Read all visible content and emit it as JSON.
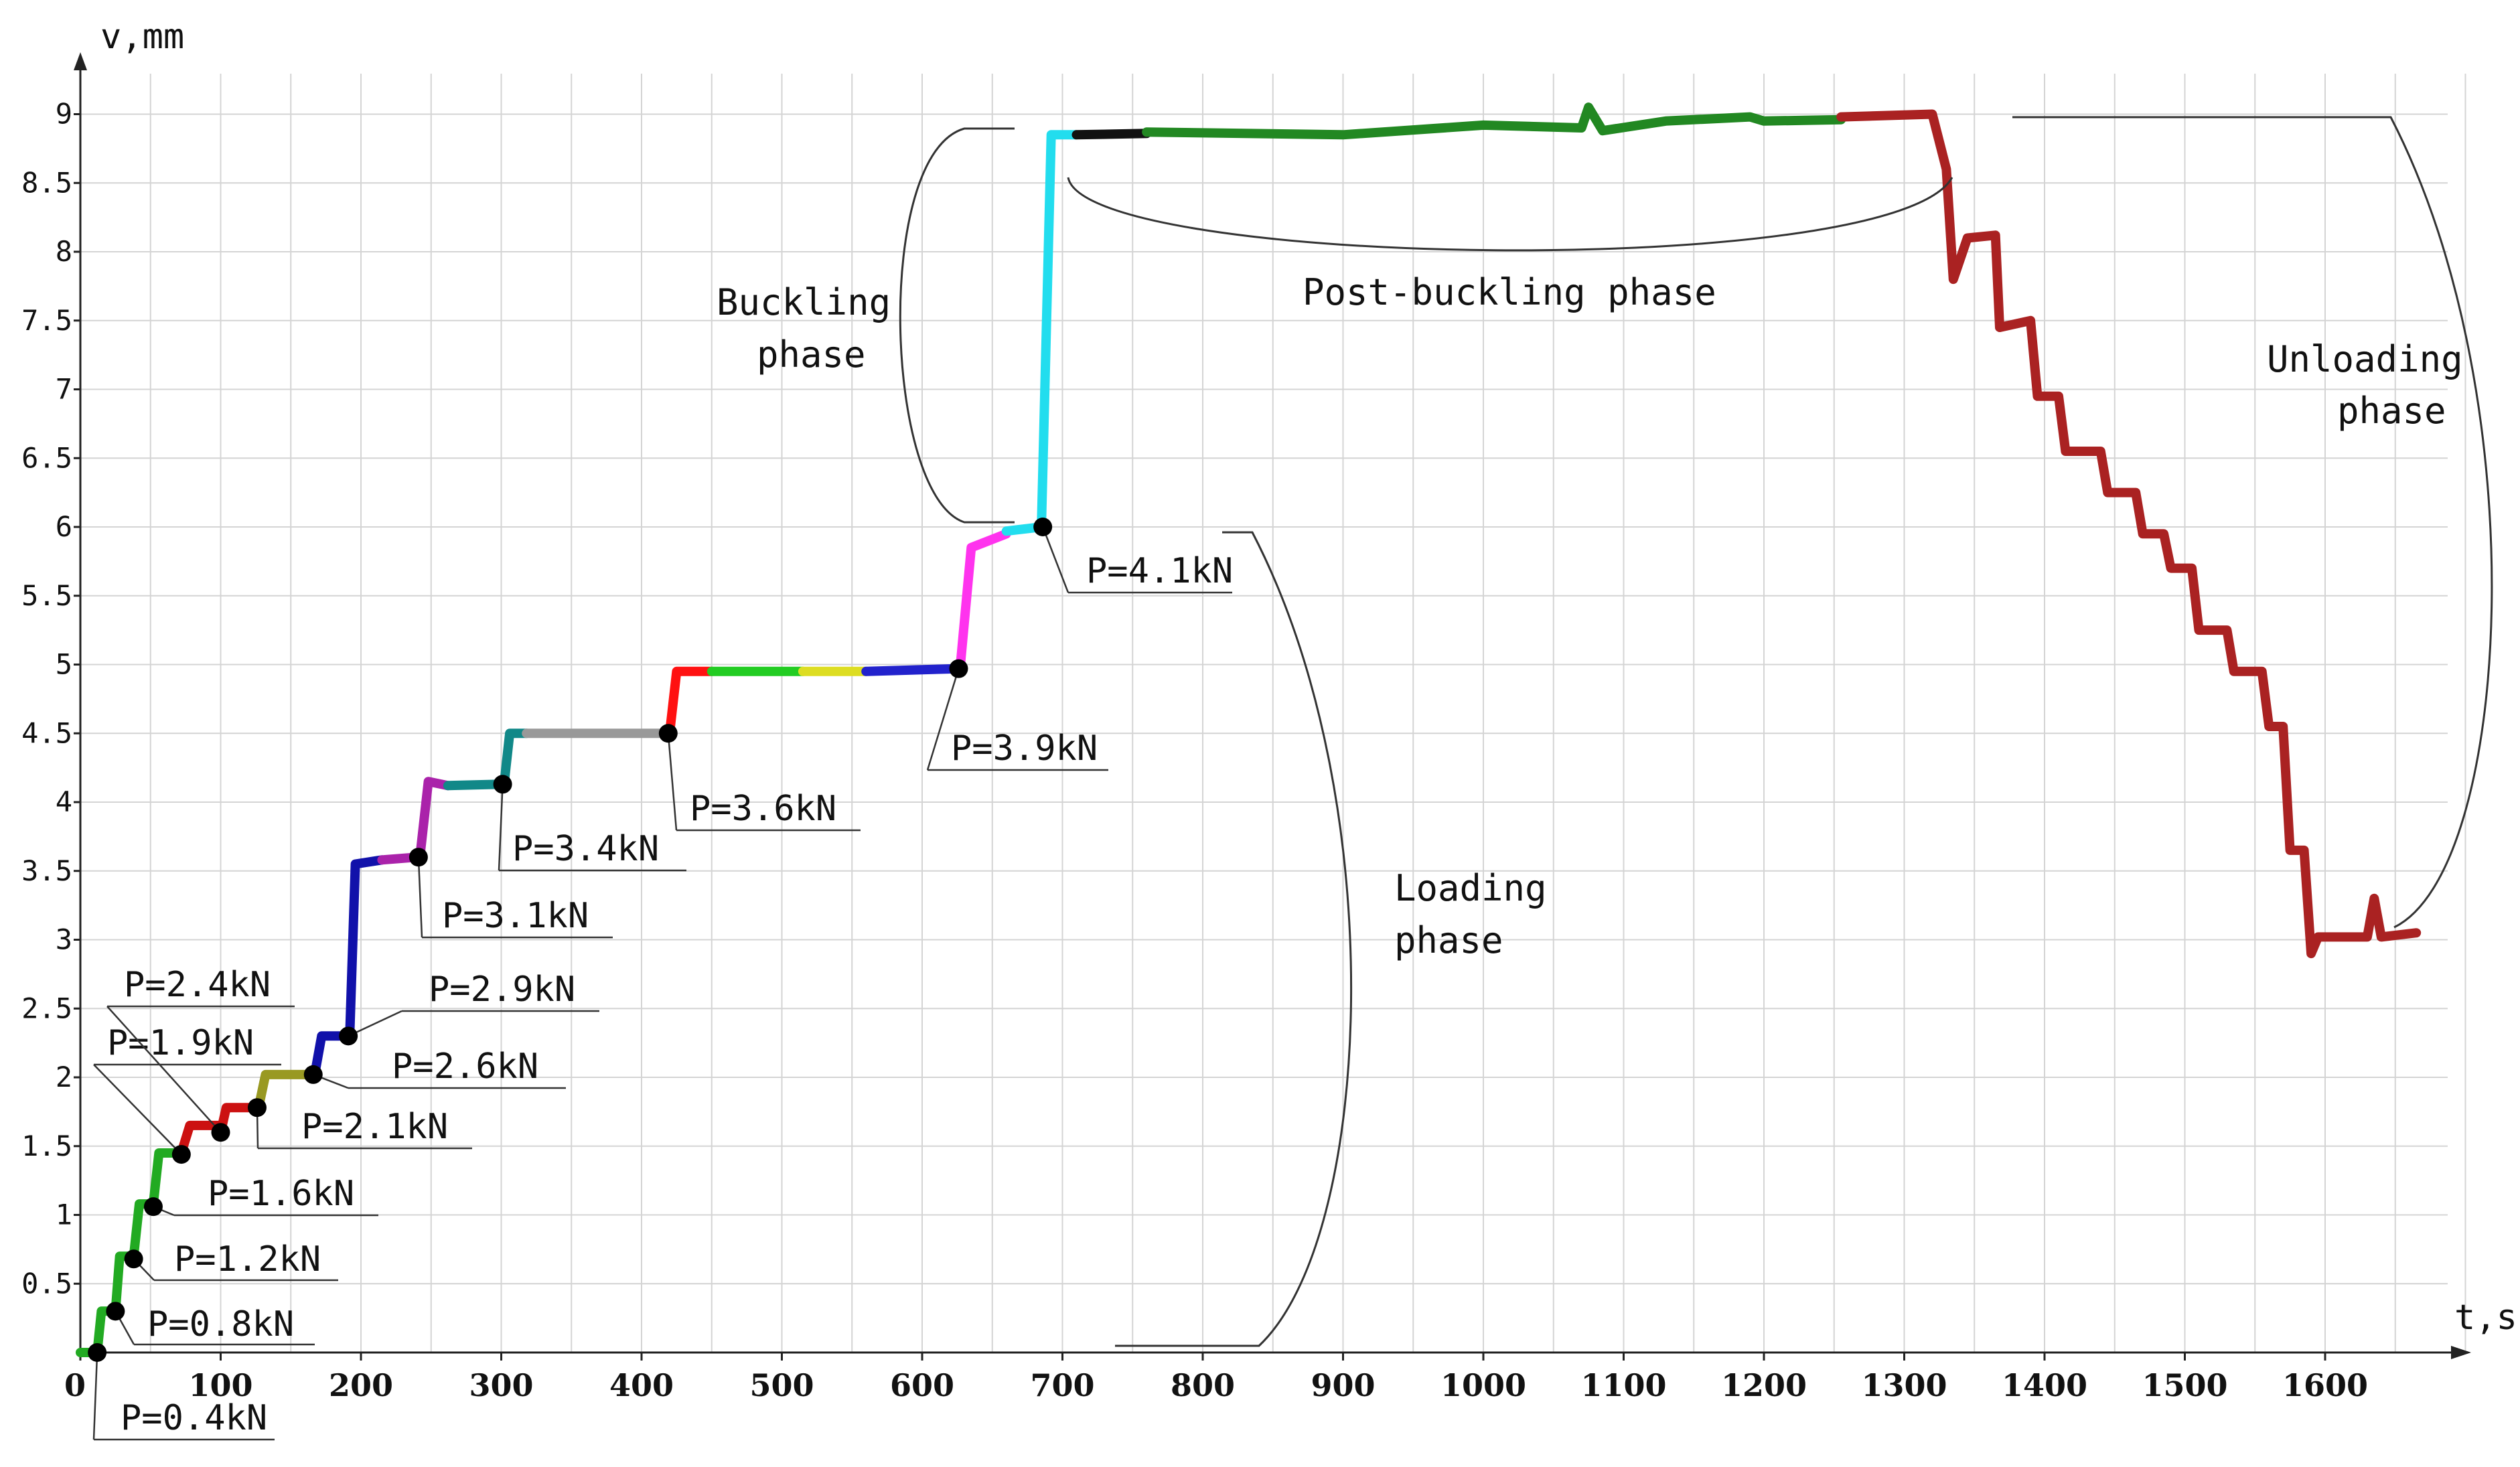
{
  "chart_data": {
    "type": "line",
    "xlabel": "t,s",
    "ylabel": "v,mm",
    "xlim": [
      0,
      1700
    ],
    "ylim": [
      0,
      9.5
    ],
    "x_ticks": [
      "0",
      "100",
      "200",
      "300",
      "400",
      "500",
      "600",
      "700",
      "800",
      "900",
      "1000",
      "1100",
      "1200",
      "1300",
      "1400",
      "1500",
      "1600"
    ],
    "y_ticks": [
      "0.5",
      "1",
      "1.5",
      "2",
      "2.5",
      "3",
      "3.5",
      "4",
      "4.5",
      "5",
      "5.5",
      "6",
      "6.5",
      "7",
      "7.5",
      "8",
      "8.5",
      "9"
    ],
    "grid": true,
    "series": [
      {
        "color": "#22aa22",
        "points": [
          [
            0,
            0
          ],
          [
            12,
            0
          ],
          [
            15,
            0.3
          ],
          [
            25,
            0.3
          ],
          [
            28,
            0.7
          ],
          [
            38,
            0.7
          ],
          [
            42,
            1.08
          ],
          [
            52,
            1.08
          ],
          [
            56,
            1.45
          ],
          [
            70,
            1.45
          ]
        ]
      },
      {
        "color": "#cc1111",
        "points": [
          [
            72,
            1.45
          ],
          [
            78,
            1.65
          ],
          [
            98,
            1.65
          ]
        ]
      },
      {
        "color": "#cc1111",
        "points": [
          [
            100,
            1.6
          ],
          [
            104,
            1.78
          ],
          [
            125,
            1.78
          ]
        ]
      },
      {
        "color": "#999922",
        "points": [
          [
            127,
            1.78
          ],
          [
            132,
            2.02
          ],
          [
            165,
            2.02
          ]
        ]
      },
      {
        "color": "#1111aa",
        "points": [
          [
            167,
            2.02
          ],
          [
            172,
            2.3
          ],
          [
            190,
            2.3
          ]
        ]
      },
      {
        "color": "#1111aa",
        "points": [
          [
            192,
            2.3
          ],
          [
            196,
            3.55
          ],
          [
            215,
            3.58
          ]
        ]
      },
      {
        "color": "#aa22aa",
        "points": [
          [
            215,
            3.58
          ],
          [
            240,
            3.6
          ]
        ]
      },
      {
        "color": "#aa22aa",
        "points": [
          [
            242,
            3.6
          ],
          [
            248,
            4.15
          ],
          [
            262,
            4.12
          ]
        ]
      },
      {
        "color": "#118888",
        "points": [
          [
            262,
            4.12
          ],
          [
            300,
            4.13
          ]
        ]
      },
      {
        "color": "#118888",
        "points": [
          [
            302,
            4.13
          ],
          [
            306,
            4.5
          ],
          [
            318,
            4.5
          ]
        ]
      },
      {
        "color": "#999999",
        "points": [
          [
            318,
            4.5
          ],
          [
            418,
            4.5
          ]
        ]
      },
      {
        "color": "#ff1111",
        "points": [
          [
            420,
            4.5
          ],
          [
            425,
            4.95
          ],
          [
            450,
            4.95
          ]
        ]
      },
      {
        "color": "#22cc22",
        "points": [
          [
            450,
            4.95
          ],
          [
            515,
            4.95
          ]
        ]
      },
      {
        "color": "#dddd22",
        "points": [
          [
            515,
            4.95
          ],
          [
            560,
            4.95
          ]
        ]
      },
      {
        "color": "#2222cc",
        "points": [
          [
            560,
            4.95
          ],
          [
            625,
            4.97
          ]
        ]
      },
      {
        "color": "#ff33ee",
        "points": [
          [
            627,
            4.97
          ],
          [
            635,
            5.85
          ],
          [
            660,
            5.95
          ]
        ]
      },
      {
        "color": "#22ddee",
        "points": [
          [
            660,
            5.97
          ],
          [
            685,
            6.0
          ],
          [
            692,
            8.85
          ],
          [
            710,
            8.85
          ]
        ]
      },
      {
        "color": "#111111",
        "points": [
          [
            710,
            8.85
          ],
          [
            760,
            8.86
          ]
        ]
      },
      {
        "color": "#228822",
        "points": [
          [
            760,
            8.87
          ],
          [
            900,
            8.85
          ],
          [
            1000,
            8.92
          ],
          [
            1070,
            8.9
          ],
          [
            1075,
            9.05
          ],
          [
            1085,
            8.88
          ],
          [
            1130,
            8.95
          ],
          [
            1190,
            8.98
          ],
          [
            1200,
            8.95
          ],
          [
            1255,
            8.96
          ]
        ]
      },
      {
        "color": "#aa2222",
        "points": [
          [
            1255,
            8.98
          ],
          [
            1320,
            9.0
          ],
          [
            1330,
            8.6
          ],
          [
            1335,
            7.8
          ],
          [
            1345,
            8.1
          ],
          [
            1365,
            8.12
          ],
          [
            1368,
            7.45
          ],
          [
            1390,
            7.5
          ],
          [
            1395,
            6.95
          ],
          [
            1410,
            6.95
          ],
          [
            1415,
            6.55
          ],
          [
            1440,
            6.55
          ],
          [
            1445,
            6.25
          ],
          [
            1465,
            6.25
          ],
          [
            1470,
            5.95
          ],
          [
            1485,
            5.95
          ],
          [
            1490,
            5.7
          ],
          [
            1505,
            5.7
          ],
          [
            1510,
            5.25
          ],
          [
            1530,
            5.25
          ],
          [
            1535,
            4.95
          ],
          [
            1555,
            4.95
          ],
          [
            1560,
            4.55
          ],
          [
            1570,
            4.55
          ],
          [
            1575,
            3.65
          ],
          [
            1585,
            3.65
          ],
          [
            1590,
            2.9
          ],
          [
            1595,
            3.02
          ],
          [
            1630,
            3.02
          ],
          [
            1635,
            3.3
          ],
          [
            1640,
            3.02
          ],
          [
            1665,
            3.05
          ]
        ]
      }
    ],
    "load_points": [
      {
        "label": "P=0.4kN",
        "x": 12,
        "y": 0
      },
      {
        "label": "P=0.8kN",
        "x": 25,
        "y": 0.3
      },
      {
        "label": "P=1.2kN",
        "x": 38,
        "y": 0.68
      },
      {
        "label": "P=1.6kN",
        "x": 52,
        "y": 1.06
      },
      {
        "label": "P=1.9kN",
        "x": 72,
        "y": 1.44
      },
      {
        "label": "P=2.4kN",
        "x": 100,
        "y": 1.6
      },
      {
        "label": "P=2.1kN",
        "x": 126,
        "y": 1.78
      },
      {
        "label": "P=2.6kN",
        "x": 166,
        "y": 2.02
      },
      {
        "label": "P=2.9kN",
        "x": 191,
        "y": 2.3
      },
      {
        "label": "P=3.1kN",
        "x": 241,
        "y": 3.6
      },
      {
        "label": "P=3.4kN",
        "x": 301,
        "y": 4.13
      },
      {
        "label": "P=3.6kN",
        "x": 419,
        "y": 4.5
      },
      {
        "label": "P=3.9kN",
        "x": 626,
        "y": 4.97
      },
      {
        "label": "P=4.1kN",
        "x": 686,
        "y": 6.0
      }
    ],
    "annotations": {
      "buckling_line1": "Buckling",
      "buckling_line2": "phase",
      "post_buckling": "Post-buckling phase",
      "unloading_line1": "Unloading",
      "unloading_line2": "phase",
      "loading_line1": "Loading",
      "loading_line2": "phase"
    }
  }
}
